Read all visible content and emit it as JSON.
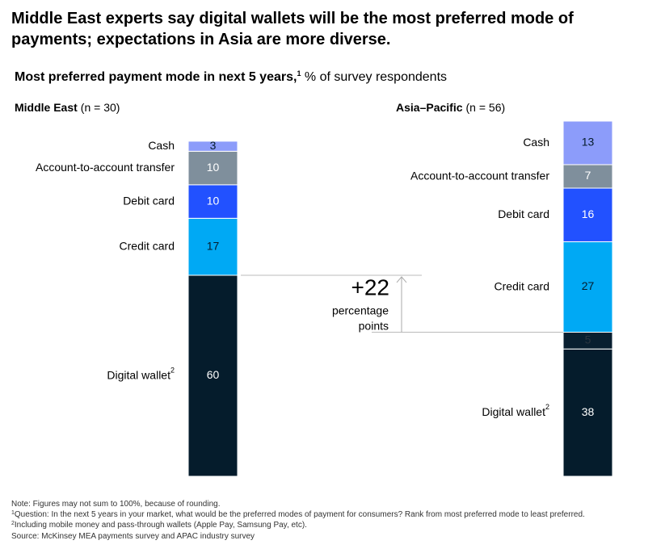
{
  "chart_data": {
    "type": "stacked_bar",
    "title": [
      "Middle East experts say digital wallets will be the most preferred mode of",
      "payments; expectations in Asia are more diverse."
    ],
    "subtitle": "Most preferred payment mode in next 5 years,",
    "subtitle_footnote": "1",
    "unit": " % of survey respondents",
    "categories": [
      "Middle East",
      "Asia–Pacific"
    ],
    "category_notes": [
      "(n = 30)",
      "(n = 56)"
    ],
    "ylim": [
      0,
      106
    ],
    "series": [
      {
        "name": "Digital wallet",
        "footnote": "2",
        "color": "#051c2c",
        "label_color": "#ffffff",
        "values": [
          60,
          38
        ]
      },
      {
        "name": null,
        "color": "#081f30",
        "label_color": "#2a3540",
        "values": [
          null,
          5
        ]
      },
      {
        "name": "Credit card",
        "color": "#00a9f4",
        "label_color": "#051c2c",
        "values": [
          17,
          27
        ]
      },
      {
        "name": "Debit card",
        "color": "#2251ff",
        "label_color": "#ffffff",
        "values": [
          10,
          16
        ]
      },
      {
        "name": "Account-to-account transfer",
        "color": "#7f8f9c",
        "label_color": "#ffffff",
        "values": [
          10,
          7
        ]
      },
      {
        "name": "Cash",
        "color": "#8c9cfa",
        "label_color": "#051c2c",
        "values": [
          3,
          13
        ]
      }
    ],
    "annotation": {
      "value": "+22",
      "text": [
        "percentage",
        "points"
      ]
    },
    "note": "Note: Figures may not sum to 100%, because of rounding.",
    "footnotes": [
      {
        "mark": "1",
        "text": "Question: In the next 5 years in your market, what would be the preferred modes of payment for consumers? Rank from most preferred mode to least preferred."
      },
      {
        "mark": "2",
        "text": "Including mobile money and pass-through wallets (Apple Pay, Samsung Pay, etc)."
      }
    ],
    "source": "Source: McKinsey MEA payments survey and APAC industry survey"
  }
}
